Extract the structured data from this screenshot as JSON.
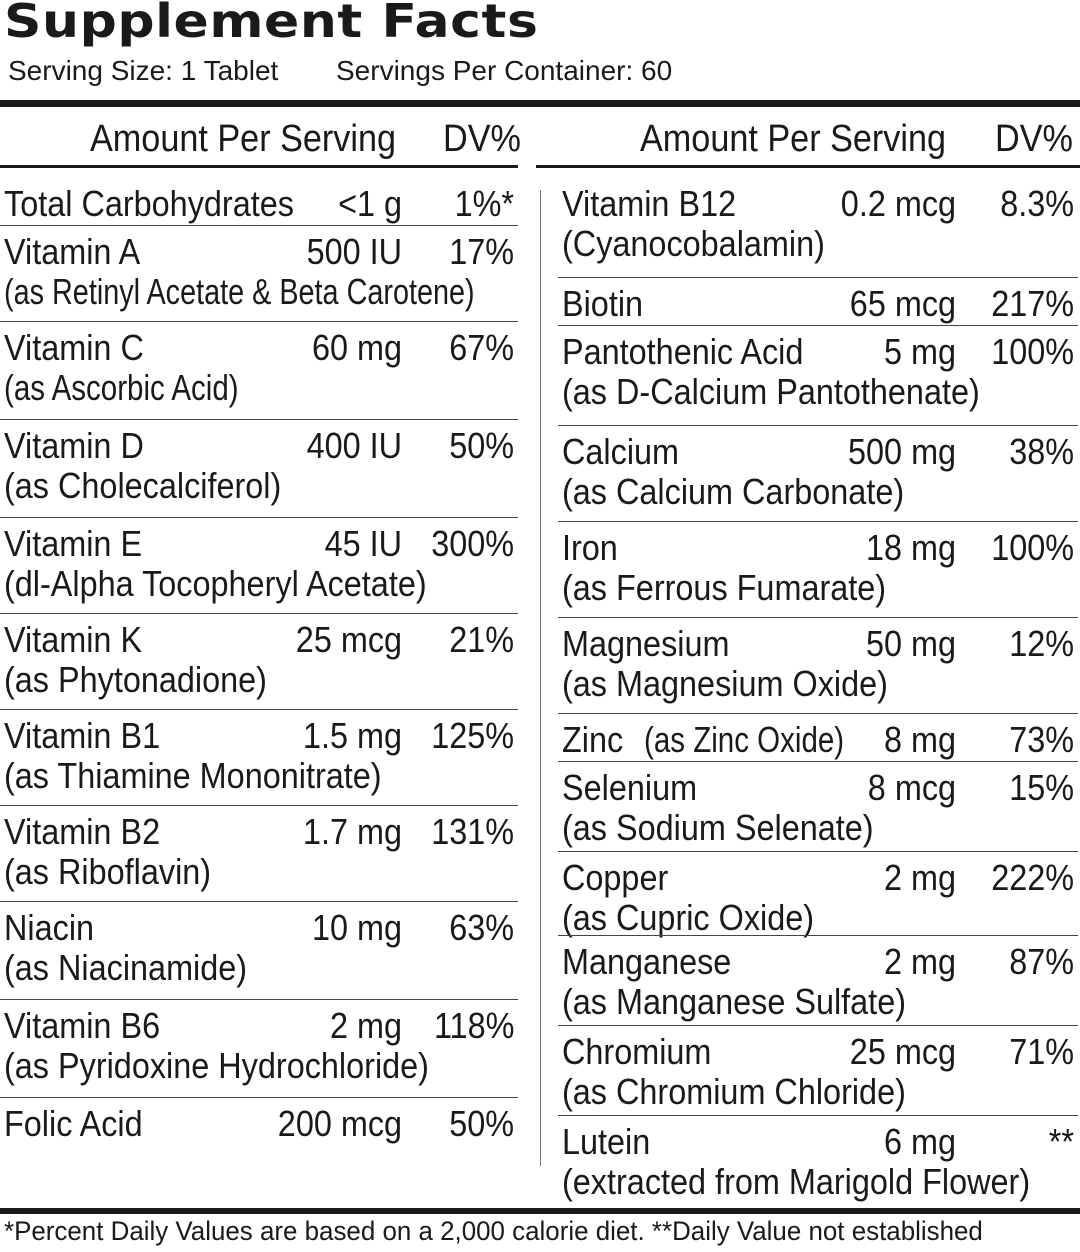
{
  "title": "Supplement Facts",
  "serving_size": "Serving Size: 1 Tablet",
  "servings_per_container": "Servings Per Container: 60",
  "header": {
    "amount": "Amount Per Serving",
    "dv": "DV%"
  },
  "left": [
    {
      "name": "Total Carbohydrates",
      "sub": "",
      "amount": "<1 g",
      "dv": "1%*"
    },
    {
      "name": "Vitamin A",
      "sub": "(as Retinyl Acetate & Beta Carotene)",
      "amount": "500 IU",
      "dv": "17%"
    },
    {
      "name": "Vitamin C",
      "sub": "(as Ascorbic Acid)",
      "amount": "60 mg",
      "dv": "67%"
    },
    {
      "name": "Vitamin D",
      "sub": "(as Cholecalciferol)",
      "amount": "400 IU",
      "dv": "50%"
    },
    {
      "name": "Vitamin E",
      "sub": "(dl-Alpha Tocopheryl Acetate)",
      "amount": "45 IU",
      "dv": "300%"
    },
    {
      "name": "Vitamin K",
      "sub": "(as Phytonadione)",
      "amount": "25 mcg",
      "dv": "21%"
    },
    {
      "name": "Vitamin B1",
      "sub": "(as Thiamine Mononitrate)",
      "amount": "1.5 mg",
      "dv": "125%"
    },
    {
      "name": "Vitamin B2",
      "sub": "(as Riboflavin)",
      "amount": "1.7 mg",
      "dv": "131%"
    },
    {
      "name": "Niacin",
      "sub": "(as Niacinamide)",
      "amount": "10 mg",
      "dv": "63%"
    },
    {
      "name": "Vitamin B6",
      "sub": "(as Pyridoxine Hydrochloride)",
      "amount": "2 mg",
      "dv": "118%"
    },
    {
      "name": "Folic Acid",
      "sub": "",
      "amount": "200 mcg",
      "dv": "50%"
    }
  ],
  "right": [
    {
      "name": "Vitamin B12",
      "sub": "(Cyanocobalamin)",
      "amount": "0.2 mcg",
      "dv": "8.3%"
    },
    {
      "name": "Biotin",
      "sub": "",
      "amount": "65 mcg",
      "dv": "217%"
    },
    {
      "name": "Pantothenic Acid",
      "sub": "(as D-Calcium Pantothenate)",
      "amount": "5 mg",
      "dv": "100%"
    },
    {
      "name": "Calcium",
      "sub": "(as Calcium Carbonate)",
      "amount": "500 mg",
      "dv": "38%"
    },
    {
      "name": "Iron",
      "sub": "(as Ferrous Fumarate)",
      "amount": "18 mg",
      "dv": "100%"
    },
    {
      "name": "Magnesium",
      "sub": "(as Magnesium Oxide)",
      "amount": "50 mg",
      "dv": "12%"
    },
    {
      "name": "Zinc",
      "sub_inline": "(as Zinc Oxide)",
      "amount": "8 mg",
      "dv": "73%"
    },
    {
      "name": "Selenium",
      "sub": "(as Sodium Selenate)",
      "amount": "8 mcg",
      "dv": "15%"
    },
    {
      "name": "Copper",
      "sub": "(as Cupric Oxide)",
      "amount": "2 mg",
      "dv": "222%"
    },
    {
      "name": "Manganese",
      "sub": "(as Manganese Sulfate)",
      "amount": "2 mg",
      "dv": "87%"
    },
    {
      "name": "Chromium",
      "sub": "(as Chromium Chloride)",
      "amount": "25  mcg",
      "dv": "71%"
    },
    {
      "name": "Lutein",
      "sub": "(extracted from Marigold Flower)",
      "amount": "6 mg",
      "dv": "**"
    }
  ],
  "footnote": "*Percent Daily Values are based on a 2,000 calorie diet. **Daily Value not established"
}
